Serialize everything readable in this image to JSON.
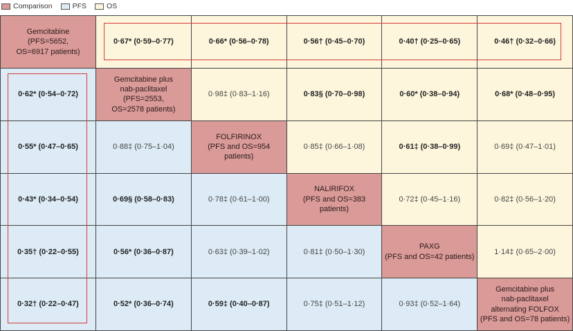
{
  "legend": [
    {
      "label": "Comparison",
      "color": "#d99a98"
    },
    {
      "label": "PFS",
      "color": "#dcebf5"
    },
    {
      "label": "OS",
      "color": "#fdf6dd"
    }
  ],
  "matrix": [
    [
      {
        "type": "comparison",
        "text": "Gemcitabine\n(PFS=5652,\nOS=6917 patients)"
      },
      {
        "type": "os",
        "text": "0·67* (0·59–0·77)",
        "bold": true
      },
      {
        "type": "os",
        "text": "0·66* (0·56–0·78)",
        "bold": true
      },
      {
        "type": "os",
        "text": "0·56† (0·45–0·70)",
        "bold": true
      },
      {
        "type": "os",
        "text": "0·40† (0·25–0·65)",
        "bold": true
      },
      {
        "type": "os",
        "text": "0·46† (0·32–0·66)",
        "bold": true
      }
    ],
    [
      {
        "type": "pfs",
        "text": "0·62* (0·54–0·72)",
        "bold": true
      },
      {
        "type": "comparison",
        "text": "Gemcitabine plus\nnab-paclitaxel\n(PFS=2553,\nOS=2578 patients)"
      },
      {
        "type": "os",
        "text": "0·98‡ (0·83–1·16)",
        "bold": false
      },
      {
        "type": "os",
        "text": "0·83§ (0·70–0·98)",
        "bold": true
      },
      {
        "type": "os",
        "text": "0·60* (0·38–0·94)",
        "bold": true
      },
      {
        "type": "os",
        "text": "0·68* (0·48–0·95)",
        "bold": true
      }
    ],
    [
      {
        "type": "pfs",
        "text": "0·55* (0·47–0·65)",
        "bold": true
      },
      {
        "type": "pfs",
        "text": "0·88‡ (0·75–1·04)",
        "bold": false
      },
      {
        "type": "comparison",
        "text": "FOLFIRINOX\n(PFS and OS=954 patients)"
      },
      {
        "type": "os",
        "text": "0·85‡ (0·66–1·08)",
        "bold": false
      },
      {
        "type": "os",
        "text": "0·61‡ (0·38–0·99)",
        "bold": true
      },
      {
        "type": "os",
        "text": "0·69‡ (0·47–1·01)",
        "bold": false
      }
    ],
    [
      {
        "type": "pfs",
        "text": "0·43* (0·34–0·54)",
        "bold": true
      },
      {
        "type": "pfs",
        "text": "0·69§ (0·58–0·83)",
        "bold": true
      },
      {
        "type": "pfs",
        "text": "0·78‡ (0·61–1·00)",
        "bold": false
      },
      {
        "type": "comparison",
        "text": "NALIRIFOX\n(PFS and  OS=383 patients)"
      },
      {
        "type": "os",
        "text": "0·72‡ (0·45–1·16)",
        "bold": false
      },
      {
        "type": "os",
        "text": "0·82‡ (0·56–1·20)",
        "bold": false
      }
    ],
    [
      {
        "type": "pfs",
        "text": "0·35† (0·22–0·55)",
        "bold": true
      },
      {
        "type": "pfs",
        "text": "0·56* (0·36–0·87)",
        "bold": true
      },
      {
        "type": "pfs",
        "text": "0·63‡ (0·39–1·02)",
        "bold": false
      },
      {
        "type": "pfs",
        "text": "0·81‡ (0·50–1·30)",
        "bold": false
      },
      {
        "type": "comparison",
        "text": "PAXG\n(PFS and OS=42 patients)"
      },
      {
        "type": "os",
        "text": "1·14‡ (0·65–2·00)",
        "bold": false
      }
    ],
    [
      {
        "type": "pfs",
        "text": "0·32† (0·22–0·47)",
        "bold": true
      },
      {
        "type": "pfs",
        "text": "0·52* (0·36–0·74)",
        "bold": true
      },
      {
        "type": "pfs",
        "text": "0·59‡ (0·40–0·87)",
        "bold": true
      },
      {
        "type": "pfs",
        "text": "0·75‡ (0·51–1·12)",
        "bold": false
      },
      {
        "type": "pfs",
        "text": "0·93‡ (0·52–1·64)",
        "bold": false
      },
      {
        "type": "comparison",
        "text": "Gemcitabine plus\nnab-paclitaxel\nalternating FOLFOX\n(PFS and OS=78 patients)"
      }
    ]
  ]
}
